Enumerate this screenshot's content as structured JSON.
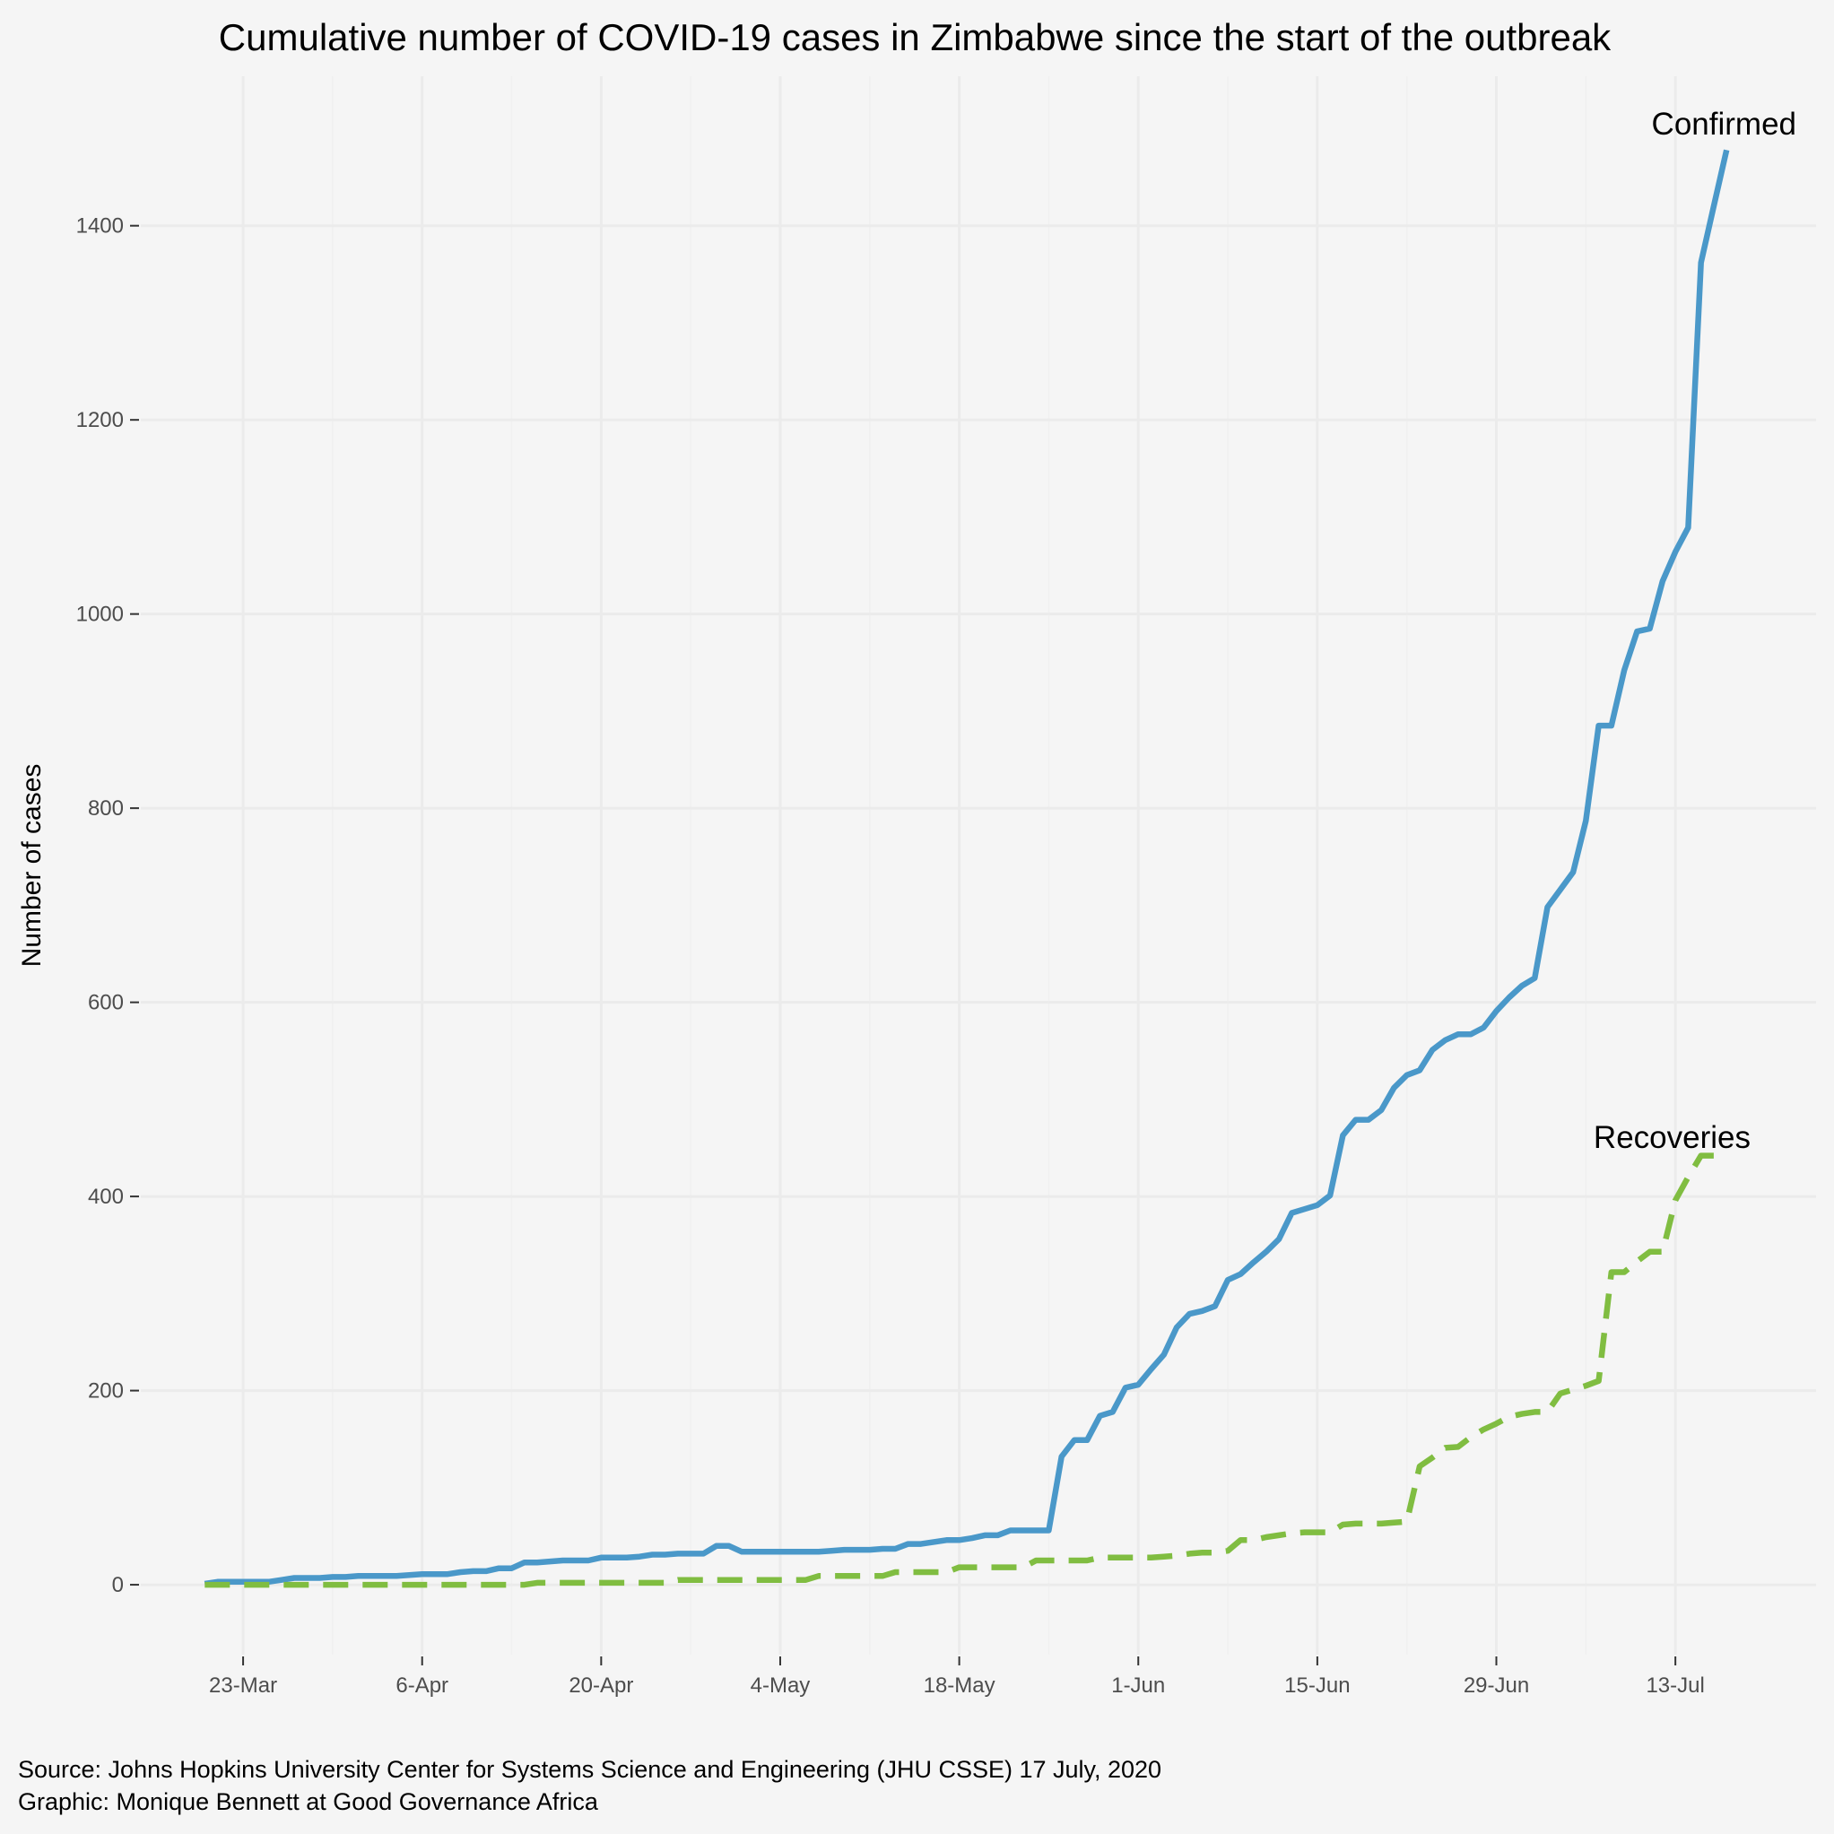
{
  "chart_data": {
    "type": "line",
    "title": "Cumulative number of COVID-19 cases in Zimbabwe since the start of the outbreak",
    "xlabel": "",
    "ylabel": "Number of cases",
    "x_start": "2020-03-20",
    "x_step": "1 day",
    "xlim": [
      "2020-03-15",
      "2020-07-24"
    ],
    "ylim": [
      -72,
      1554
    ],
    "x_ticks": [
      {
        "date": "2020-03-23",
        "label": "23-Mar"
      },
      {
        "date": "2020-04-06",
        "label": "6-Apr"
      },
      {
        "date": "2020-04-20",
        "label": "20-Apr"
      },
      {
        "date": "2020-05-04",
        "label": "4-May"
      },
      {
        "date": "2020-05-18",
        "label": "18-May"
      },
      {
        "date": "2020-06-01",
        "label": "1-Jun"
      },
      {
        "date": "2020-06-15",
        "label": "15-Jun"
      },
      {
        "date": "2020-06-29",
        "label": "29-Jun"
      },
      {
        "date": "2020-07-13",
        "label": "13-Jul"
      }
    ],
    "y_ticks": [
      0,
      200,
      400,
      600,
      800,
      1000,
      1200,
      1400
    ],
    "grid": true,
    "legend": "none (direct labels at line ends)",
    "series": [
      {
        "name": "Confirmed",
        "color": "#4a98c9",
        "style": "solid",
        "values": [
          1,
          3,
          3,
          3,
          3,
          3,
          5,
          7,
          7,
          7,
          8,
          8,
          9,
          9,
          9,
          9,
          10,
          11,
          11,
          11,
          13,
          14,
          14,
          17,
          17,
          23,
          23,
          24,
          25,
          25,
          25,
          28,
          28,
          28,
          29,
          31,
          31,
          32,
          32,
          32,
          40,
          40,
          34,
          34,
          34,
          34,
          34,
          34,
          34,
          35,
          36,
          36,
          36,
          37,
          37,
          42,
          42,
          44,
          46,
          46,
          48,
          51,
          51,
          56,
          56,
          56,
          56,
          132,
          149,
          149,
          174,
          178,
          203,
          206,
          222,
          237,
          265,
          279,
          282,
          287,
          314,
          320,
          332,
          343,
          356,
          383,
          387,
          391,
          401,
          463,
          479,
          479,
          489,
          512,
          525,
          530,
          551,
          561,
          567,
          567,
          574,
          591,
          605,
          617,
          625,
          698,
          716,
          734,
          787,
          885,
          885,
          942,
          982,
          985,
          1034,
          1064,
          1089,
          1362,
          1420,
          1478
        ]
      },
      {
        "name": "Recoveries",
        "color": "#80bd41",
        "style": "dashed",
        "values": [
          0,
          0,
          0,
          0,
          0,
          0,
          0,
          0,
          0,
          0,
          0,
          0,
          0,
          0,
          0,
          0,
          0,
          0,
          0,
          0,
          0,
          0,
          0,
          0,
          0,
          0,
          2,
          2,
          2,
          2,
          2,
          2,
          2,
          2,
          2,
          2,
          2,
          5,
          5,
          5,
          5,
          5,
          5,
          5,
          5,
          5,
          5,
          5,
          9,
          9,
          9,
          9,
          9,
          9,
          13,
          13,
          13,
          13,
          13,
          18,
          18,
          18,
          18,
          18,
          18,
          25,
          25,
          25,
          25,
          25,
          28,
          28,
          28,
          28,
          28,
          29,
          30,
          32,
          33,
          33,
          35,
          46,
          46,
          49,
          51,
          53,
          54,
          54,
          54,
          62,
          63,
          63,
          63,
          64,
          65,
          122,
          131,
          141,
          142,
          152,
          160,
          166,
          173,
          176,
          178,
          178,
          197,
          201,
          205,
          210,
          322,
          322,
          333,
          343,
          343,
          396,
          420,
          442,
          442,
          442
        ]
      }
    ],
    "annotations": [
      "Confirmed",
      "Recoveries"
    ]
  },
  "caption": {
    "source": "Source: Johns Hopkins University Center for Systems Science and Engineering (JHU CSSE) 17 July, 2020",
    "graphic": "Graphic: Monique Bennett at Good Governance Africa"
  },
  "colors": {
    "background": "#f5f5f5",
    "grid": "#ebebeb"
  }
}
